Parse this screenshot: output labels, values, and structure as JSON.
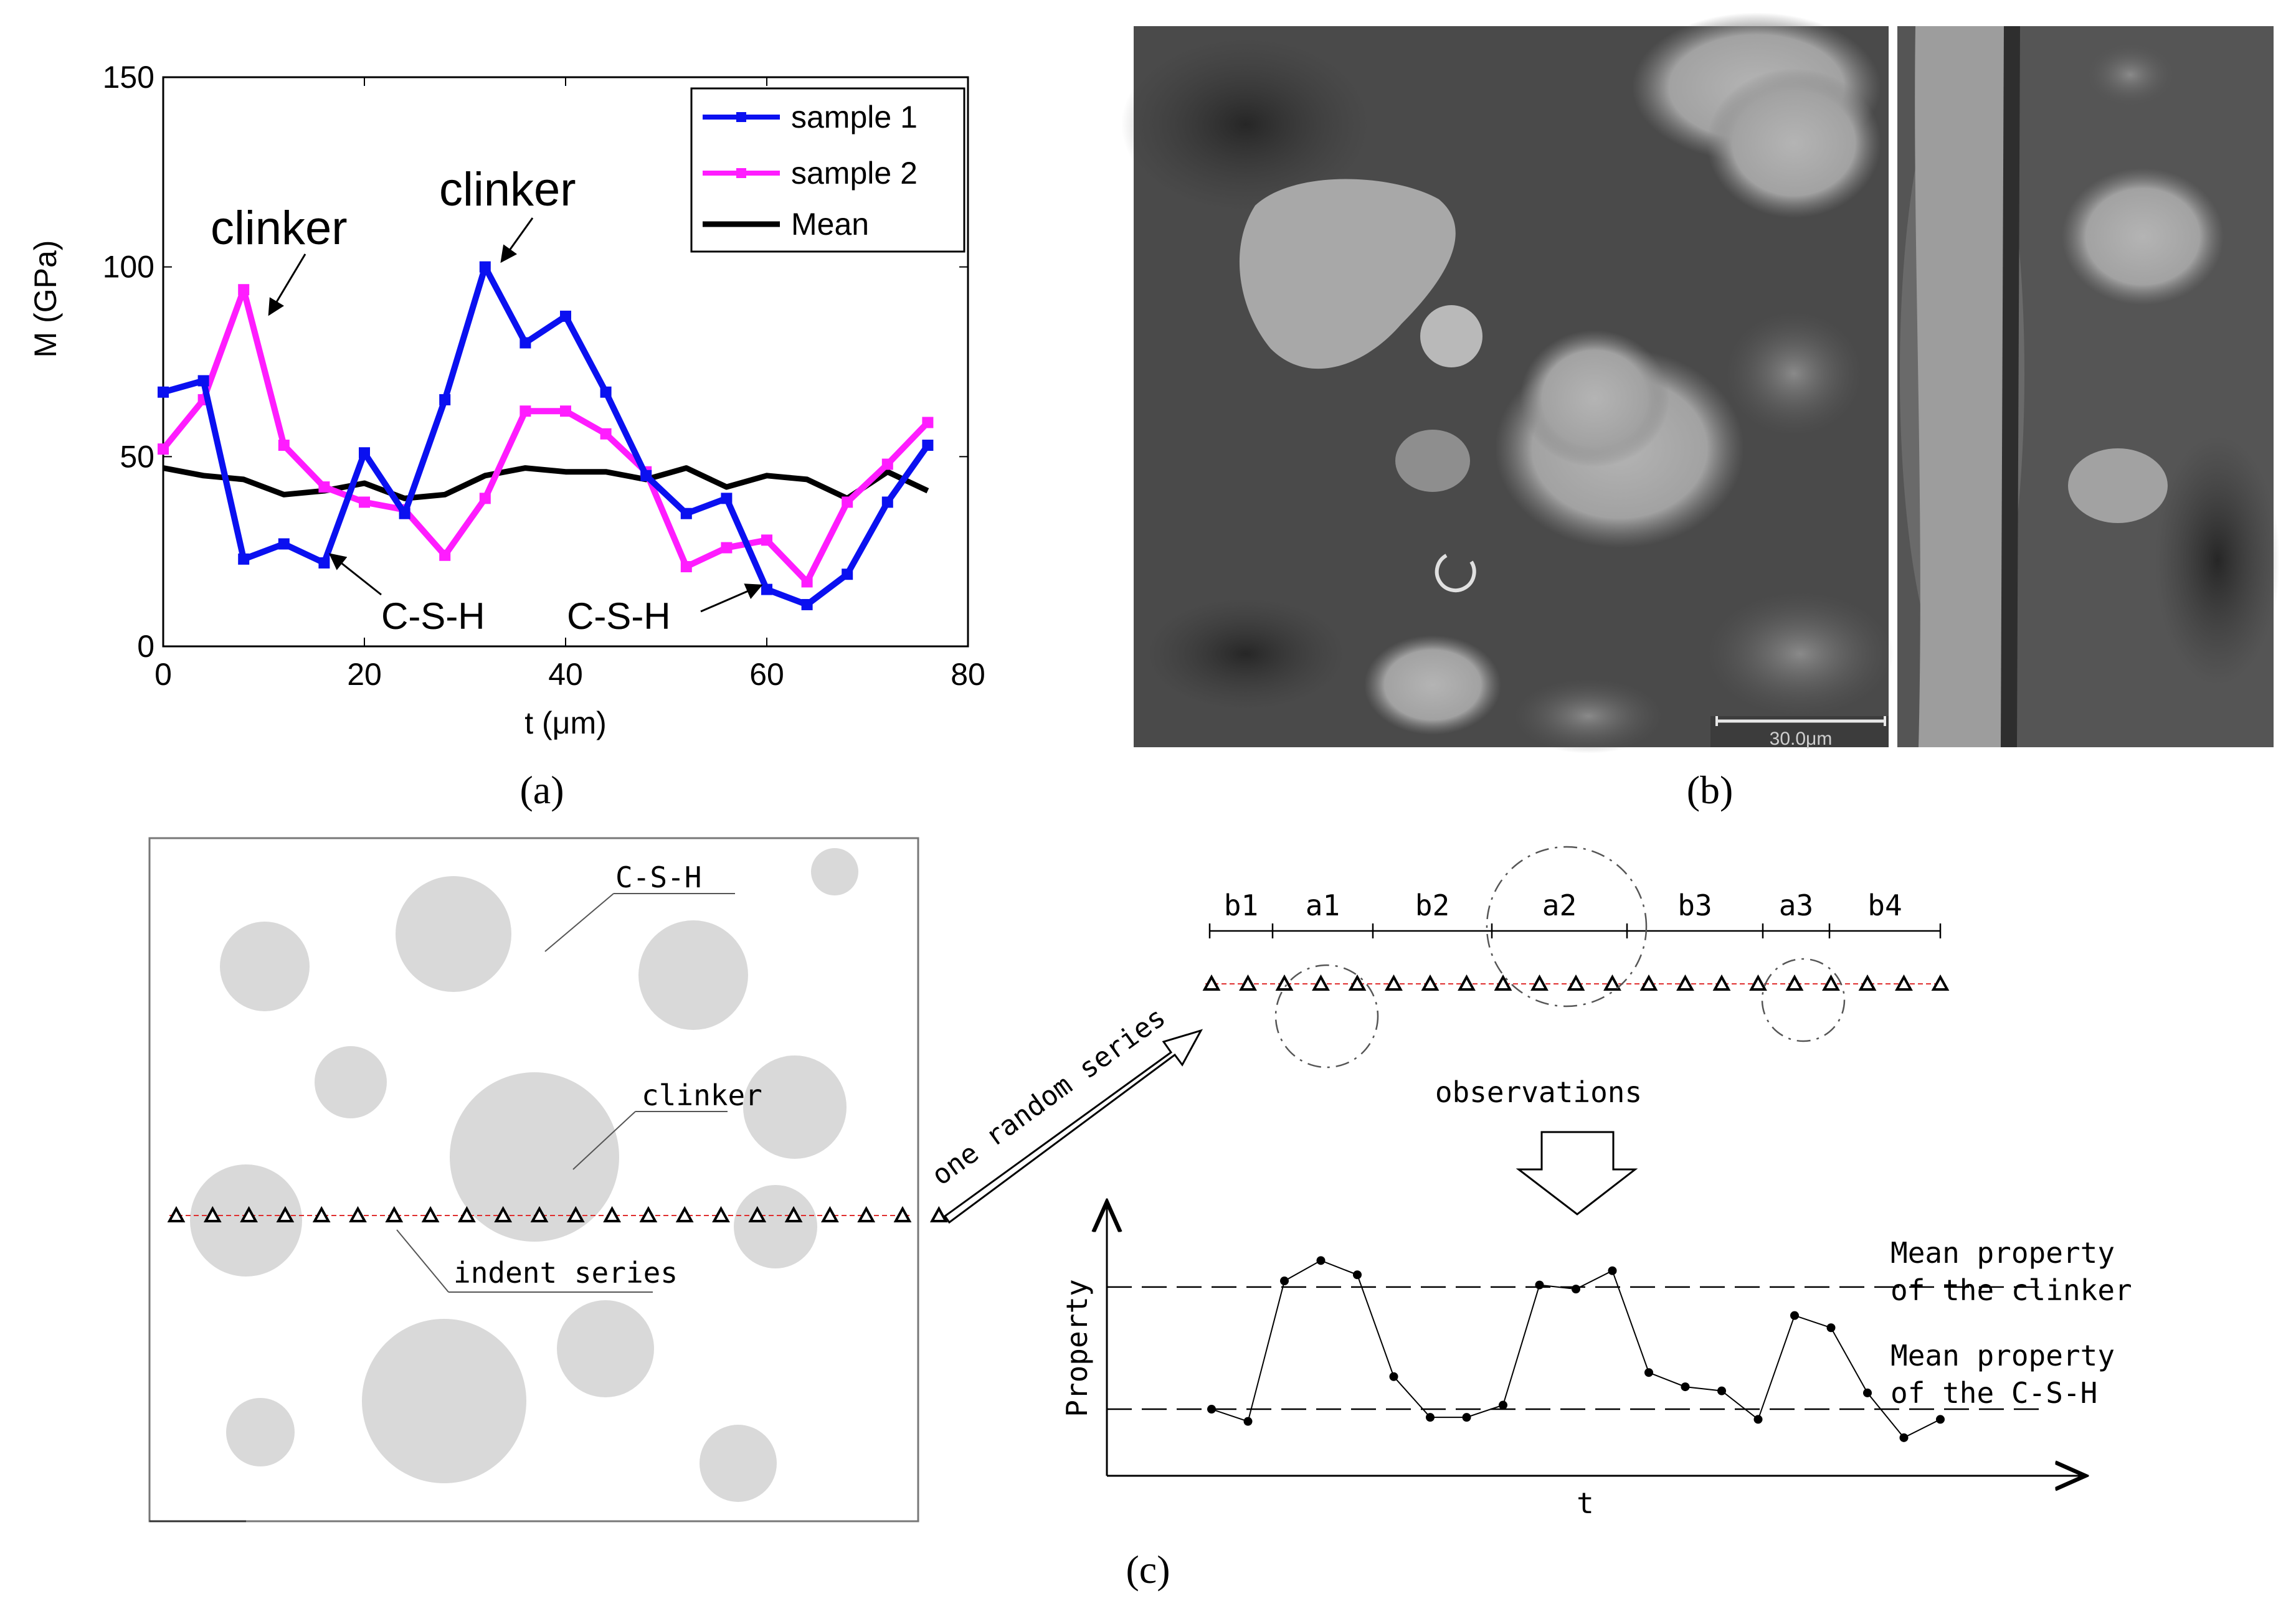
{
  "panel_a": {
    "caption": "(a)",
    "annotations": {
      "clinker_left": "clinker",
      "clinker_right": "clinker",
      "csh_left": "C-S-H",
      "csh_right": "C-S-H"
    },
    "chart_data": {
      "type": "line",
      "title": "",
      "xlabel": "t (μm)",
      "ylabel": "M (GPa)",
      "xlim": [
        0,
        80
      ],
      "ylim": [
        0,
        150
      ],
      "xticks": [
        0,
        20,
        40,
        60,
        80
      ],
      "yticks": [
        0,
        50,
        100,
        150
      ],
      "grid": false,
      "legend_position": "top-right",
      "series": [
        {
          "name": "sample 1",
          "color": "#0a10f0",
          "marker": "square",
          "x": [
            0,
            4,
            8,
            12,
            16,
            20,
            24,
            28,
            32,
            36,
            40,
            44,
            48,
            52,
            56,
            60,
            64,
            68,
            72,
            76
          ],
          "y": [
            67,
            70,
            23,
            27,
            22,
            51,
            35,
            65,
            100,
            80,
            87,
            67,
            45,
            35,
            39,
            15,
            11,
            19,
            38,
            53
          ]
        },
        {
          "name": "sample 2",
          "color": "#ff1cff",
          "marker": "square",
          "x": [
            0,
            4,
            8,
            12,
            16,
            20,
            24,
            28,
            32,
            36,
            40,
            44,
            48,
            52,
            56,
            60,
            64,
            68,
            72,
            76
          ],
          "y": [
            52,
            65,
            94,
            53,
            42,
            38,
            36,
            24,
            39,
            62,
            62,
            56,
            46,
            21,
            26,
            28,
            17,
            38,
            48,
            59
          ]
        },
        {
          "name": "Mean",
          "color": "#000000",
          "marker": "none",
          "x": [
            0,
            4,
            8,
            12,
            16,
            20,
            24,
            28,
            32,
            36,
            40,
            44,
            48,
            52,
            56,
            60,
            64,
            68,
            72,
            76
          ],
          "y": [
            47,
            45,
            44,
            40,
            41,
            43,
            39,
            40,
            45,
            47,
            46,
            46,
            44,
            47,
            42,
            45,
            44,
            39,
            46,
            41
          ]
        }
      ]
    }
  },
  "panel_b": {
    "caption": "(b)",
    "scale_bar_label": "30.0μm"
  },
  "panel_c": {
    "caption": "(c)",
    "labels": {
      "csh": "C-S-H",
      "clinker": "clinker",
      "indent_series": "indent series",
      "arrow_text": "one random series",
      "observations": "observations",
      "y_axis": "Property",
      "x_axis": "t",
      "mean_clinker_line1": "Mean property",
      "mean_clinker_line2": "of the clinker",
      "mean_csh_line1": "Mean property",
      "mean_csh_line2": "of the C-S-H"
    },
    "segments": [
      "b1",
      "a1",
      "b2",
      "a2",
      "b3",
      "a3",
      "b4"
    ],
    "chart_data": {
      "type": "line",
      "title": "",
      "xlabel": "t",
      "ylabel": "Property",
      "series": [
        {
          "name": "observations",
          "x": [
            1,
            2,
            3,
            4,
            5,
            6,
            7,
            8,
            9,
            10,
            11,
            12,
            13,
            14,
            15,
            16,
            17,
            18,
            19,
            20,
            21
          ],
          "y": [
            0.22,
            0.16,
            0.85,
            0.95,
            0.88,
            0.38,
            0.18,
            0.18,
            0.24,
            0.83,
            0.81,
            0.9,
            0.4,
            0.33,
            0.31,
            0.17,
            0.68,
            0.62,
            0.3,
            0.08,
            0.17
          ]
        }
      ],
      "reference_lines": [
        {
          "name": "Mean property of the clinker",
          "y": 0.82
        },
        {
          "name": "Mean property of the C-S-H",
          "y": 0.22
        }
      ]
    }
  }
}
